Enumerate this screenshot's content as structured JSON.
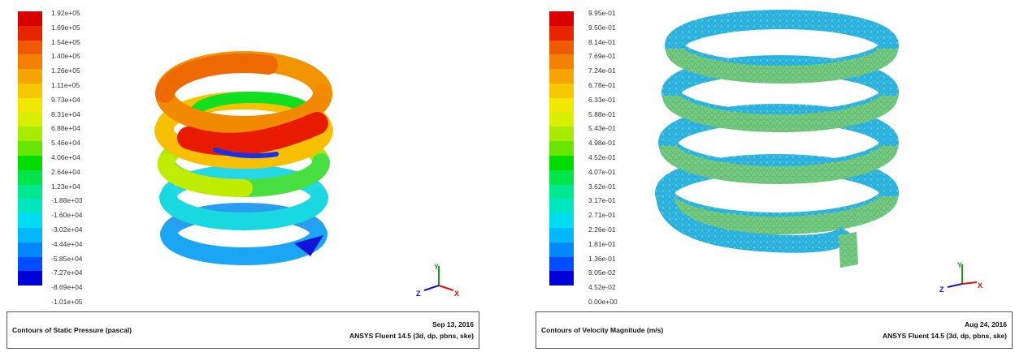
{
  "colors": {
    "scale": [
      "#0000d8",
      "#004cff",
      "#0088ff",
      "#00b8ff",
      "#00dcf2",
      "#00e6c0",
      "#00e890",
      "#00e64a",
      "#00dc00",
      "#66e600",
      "#a8ea00",
      "#d8f000",
      "#f0e800",
      "#f6c800",
      "#f8a400",
      "#f48000",
      "#ee5a00",
      "#e82400",
      "#d80000"
    ],
    "spring_velocity_base": "#1fb8f0",
    "spring_velocity_mesh": "#5a7ea8"
  },
  "left_panel": {
    "legend": [
      "1.92e+05",
      "1.69e+05",
      "1.54e+05",
      "1.40e+05",
      "1.26e+05",
      "1.11e+05",
      "9.73e+04",
      "8.31e+04",
      "6.88e+04",
      "5.46e+04",
      "4.06e+04",
      "2.64e+04",
      "1.23e+04",
      "-1.88e+03",
      "-1.60e+04",
      "-3.02e+04",
      "-4.44e+04",
      "-5.85e+04",
      "-7.27e+04",
      "-8.69e+04",
      "-1.01e+05"
    ],
    "footer": {
      "title": "Contours of Static Pressure (pascal)",
      "date": "Sep 13, 2016",
      "software": "ANSYS Fluent 14.5 (3d, dp, pbns, ske)"
    },
    "axes": {
      "y": "Y",
      "z": "Z",
      "x": "X"
    }
  },
  "right_panel": {
    "legend": [
      "9.95e-01",
      "9.50e-01",
      "8.14e-01",
      "7.69e-01",
      "7.24e-01",
      "6.78e-01",
      "6.33e-01",
      "5.88e-01",
      "5.43e-01",
      "4.98e-01",
      "4.52e-01",
      "4.07e-01",
      "3.62e-01",
      "3.17e-01",
      "2.71e-01",
      "2.26e-01",
      "1.81e-01",
      "1.36e-01",
      "9.05e-02",
      "4.52e-02",
      "0.00e+00"
    ],
    "footer": {
      "title": "Contours of Velocity Magnitude (m/s)",
      "date": "Aug 24, 2016",
      "software": "ANSYS Fluent 14.5 (3d, dp, pbns, ske)"
    },
    "axes": {
      "y": "Y",
      "z": "Z",
      "x": "X"
    }
  }
}
